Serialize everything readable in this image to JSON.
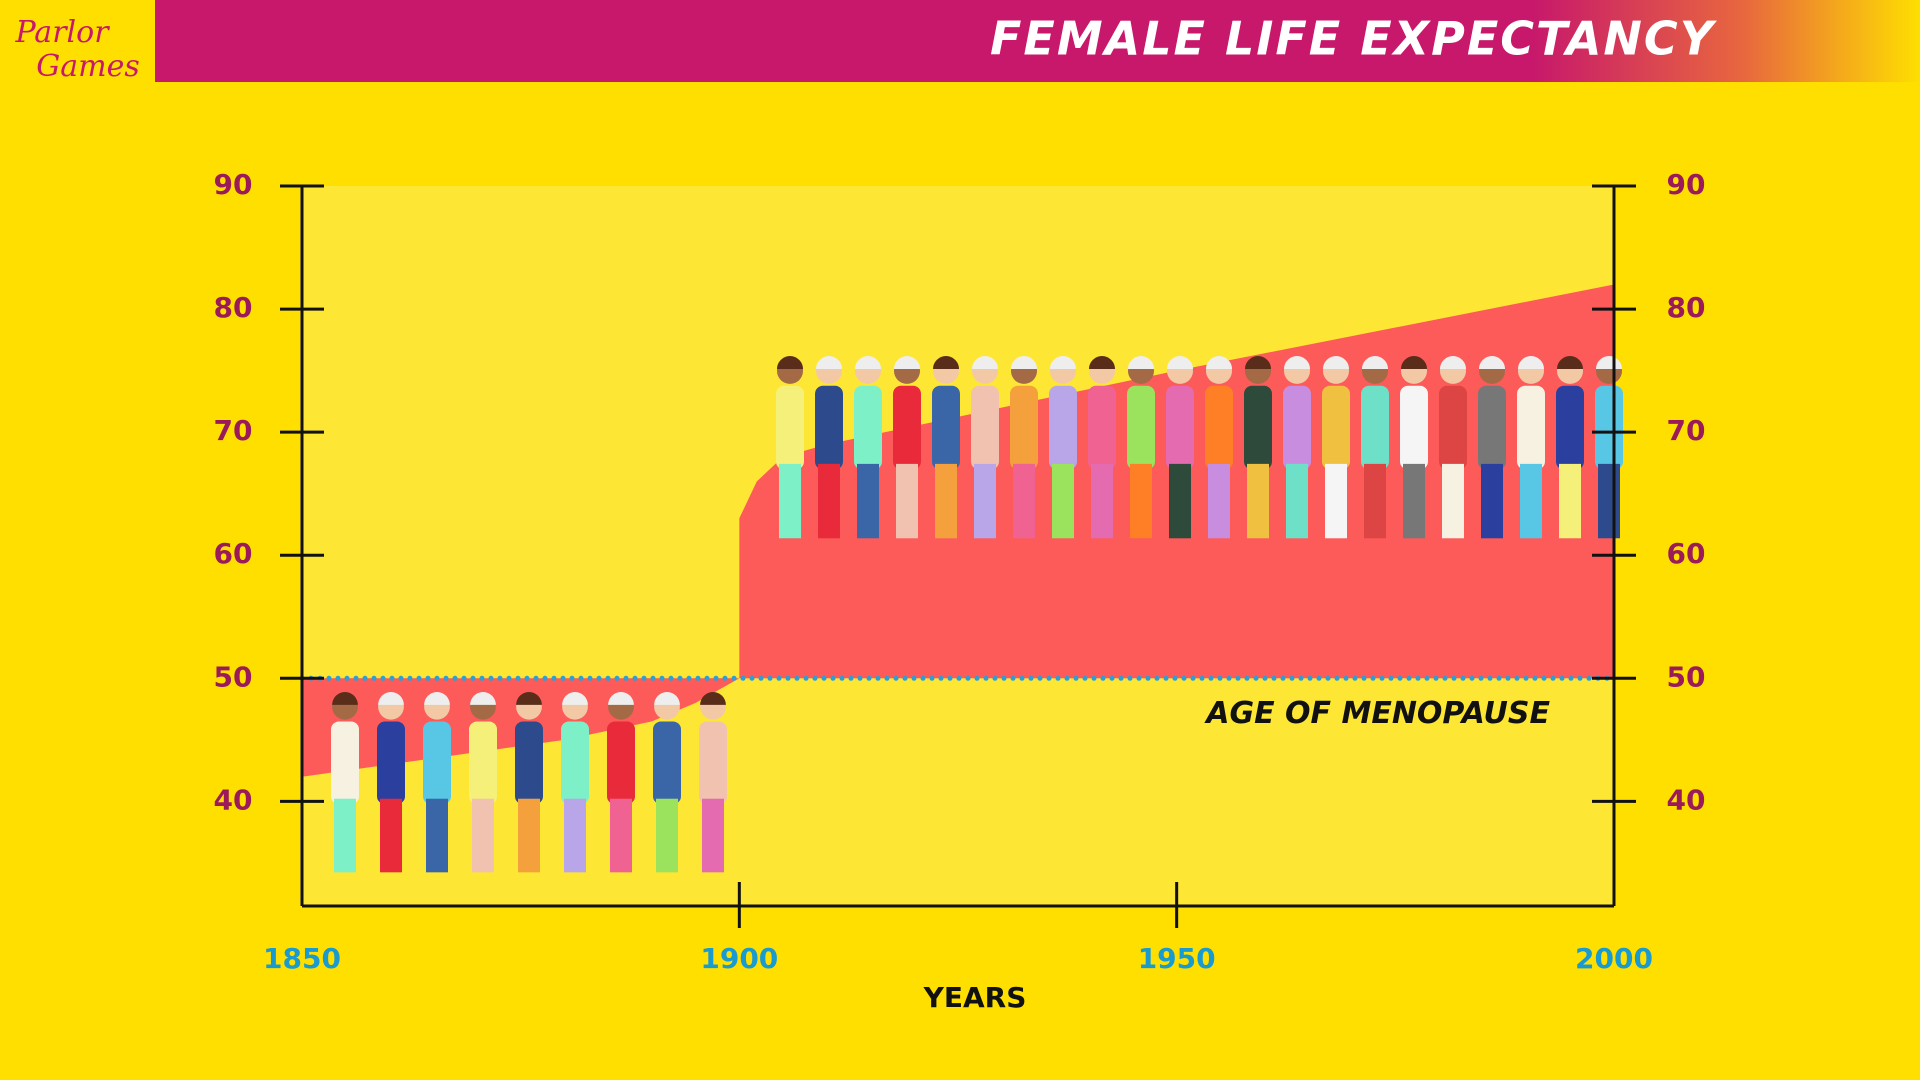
{
  "logo": [
    "Parlor",
    "Games"
  ],
  "chart_data": {
    "type": "area",
    "title": "FEMALE LIFE EXPECTANCY",
    "x_label": "YEARS",
    "x": [
      1850,
      1860,
      1870,
      1880,
      1890,
      1895,
      1900,
      1900,
      1902,
      1905,
      1910,
      1950,
      2000
    ],
    "series": [
      {
        "color": "#fd5a5a",
        "values": [
          42,
          43,
          44,
          45,
          46.5,
          48,
          50,
          63,
          66,
          68,
          69,
          75,
          82
        ]
      }
    ],
    "reference_line": {
      "value": 50,
      "label": "AGE OF MENOPAUSE",
      "color": "#2a9fd8"
    },
    "xlim": [
      1850,
      2000
    ],
    "xticks": [
      1850,
      1900,
      1950,
      2000
    ],
    "ylim": [
      31.5,
      90
    ],
    "yticks": [
      40,
      50,
      60,
      70,
      80,
      90
    ],
    "y2lim": [
      31.5,
      90
    ],
    "y2ticks": [
      40,
      50,
      60,
      70,
      80,
      90
    ]
  }
}
